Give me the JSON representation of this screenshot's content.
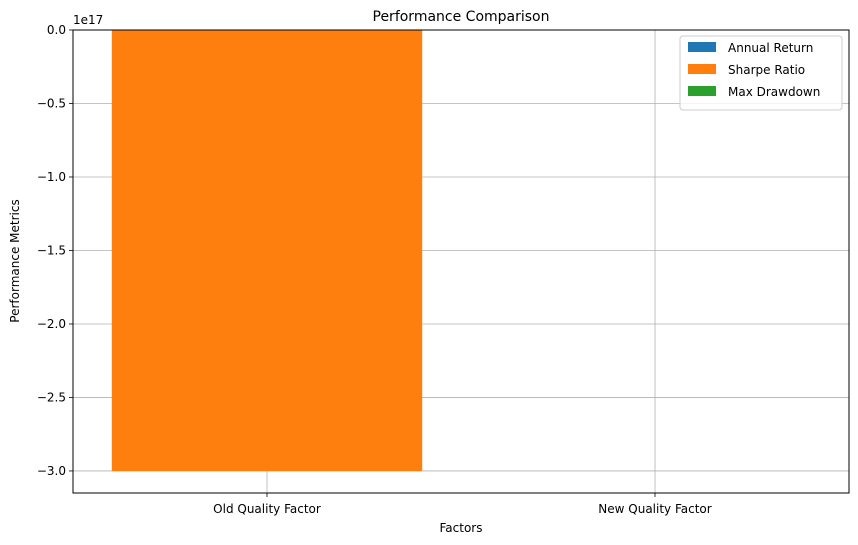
{
  "chart_data": {
    "type": "bar",
    "title": "Performance Comparison",
    "xlabel": "Factors",
    "ylabel": "Performance Metrics",
    "offset_label": "1e17",
    "categories": [
      "Old Quality Factor",
      "New Quality Factor"
    ],
    "series": [
      {
        "name": "Annual Return",
        "color": "#1f77b4",
        "values": [
          0,
          0
        ]
      },
      {
        "name": "Sharpe Ratio",
        "color": "#ff7f0e",
        "values": [
          -3e+17,
          0
        ]
      },
      {
        "name": "Max Drawdown",
        "color": "#2ca02c",
        "values": [
          0,
          0
        ]
      }
    ],
    "stacked": true,
    "ylim": [
      -3.15e+17,
      0
    ],
    "yticks": [
      0,
      -5e+16,
      -1e+17,
      -1.5e+17,
      -2e+17,
      -2.5e+17,
      -3e+17
    ],
    "ytick_labels": [
      "0.0",
      "−0.5",
      "−1.0",
      "−1.5",
      "−2.0",
      "−2.5",
      "−3.0"
    ],
    "grid": true,
    "legend_position": "top-right"
  }
}
